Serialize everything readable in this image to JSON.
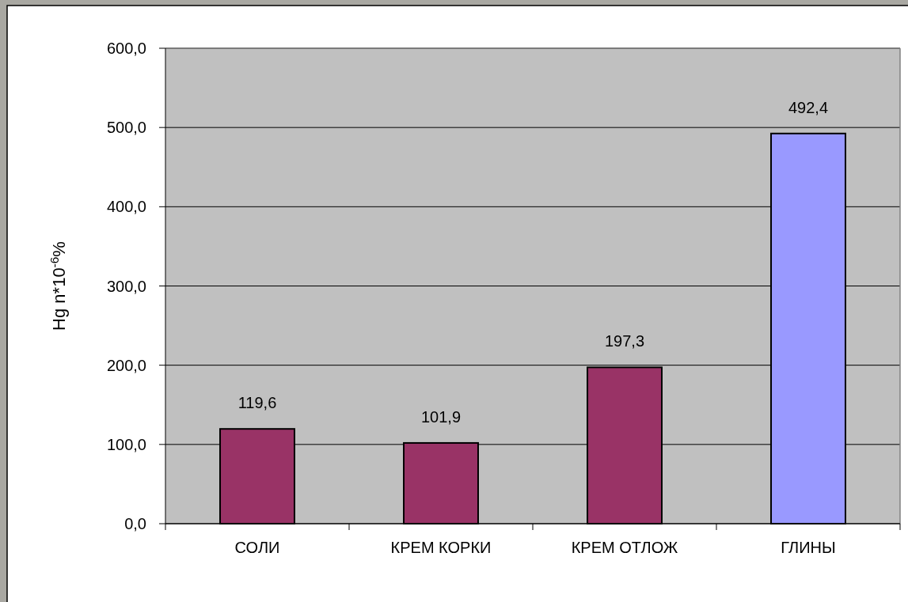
{
  "chart_data": {
    "type": "bar",
    "ylabel": "Hg n*10$^{-6}$%",
    "categories": [
      "СОЛИ",
      "КРЕМ КОРКИ",
      "КРЕМ ОТЛОЖ",
      "ГЛИНЫ"
    ],
    "values": [
      119.6,
      101.9,
      197.3,
      492.4
    ],
    "colors": [
      "#993366",
      "#993366",
      "#993366",
      "#9999ff"
    ],
    "value_labels": [
      "119,6",
      "101,9",
      "197,3",
      "492,4"
    ],
    "ylim": [
      0,
      600
    ],
    "yticks": [
      {
        "value": 0,
        "label": "0,0"
      },
      {
        "value": 100,
        "label": "100,0"
      },
      {
        "value": 200,
        "label": "200,0"
      },
      {
        "value": 300,
        "label": "300,0"
      },
      {
        "value": 400,
        "label": "400,0"
      },
      {
        "value": 500,
        "label": "500,0"
      },
      {
        "value": 600,
        "label": "600,0"
      }
    ],
    "grid": "y"
  }
}
